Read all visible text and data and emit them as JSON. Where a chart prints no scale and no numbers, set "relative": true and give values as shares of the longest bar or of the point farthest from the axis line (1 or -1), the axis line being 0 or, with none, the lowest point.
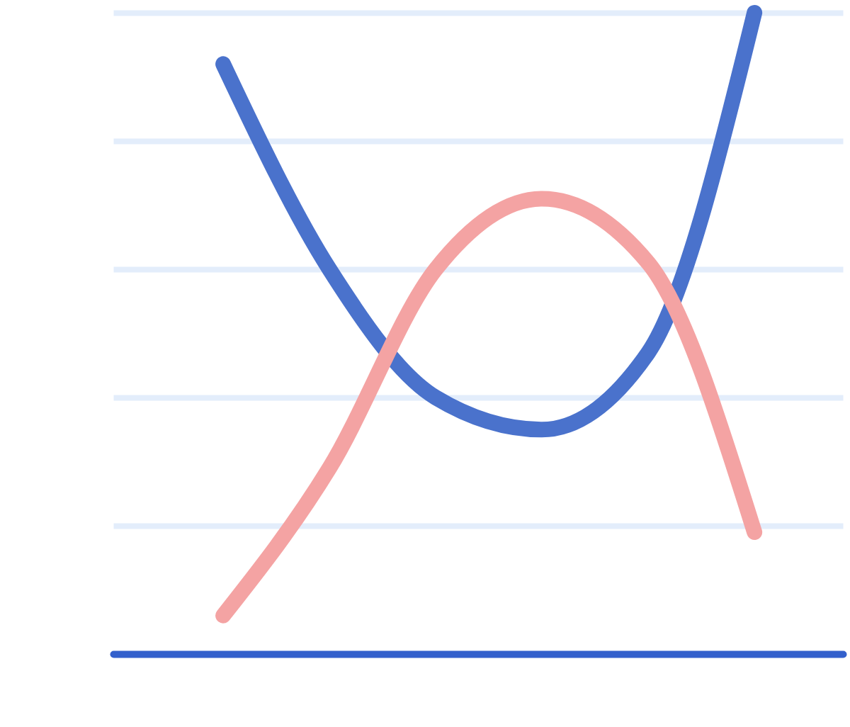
{
  "chart_data": {
    "type": "line",
    "relative": true,
    "categories": [
      null,
      null,
      null,
      null,
      null,
      null
    ],
    "series": [
      {
        "color": "#4a72cc",
        "values": [
          0.92,
          0.6,
          0.4,
          0.35,
          0.47,
          1
        ]
      },
      {
        "color": "#f4a3a3",
        "values": [
          0.06,
          0.29,
          0.6,
          0.71,
          0.61,
          0.19
        ]
      }
    ],
    "grid": "y",
    "line_style": "solid"
  }
}
